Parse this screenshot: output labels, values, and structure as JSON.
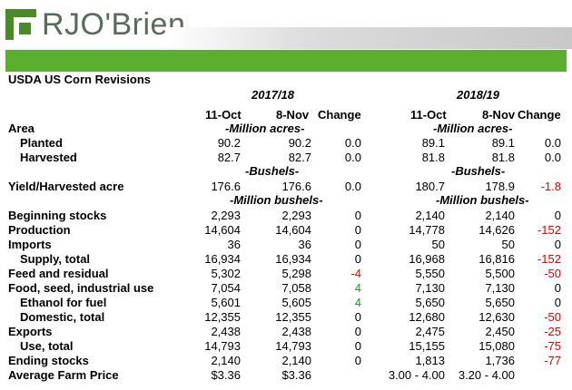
{
  "brand": {
    "name": "RJO'Brien",
    "color_green": "#5ab02e",
    "color_dark_green": "#4a8a2a"
  },
  "title": "USDA US Corn Revisions",
  "year1": "2017/18",
  "year2": "2018/19",
  "col_dates": {
    "a": "11-Oct",
    "b": "8-Nov",
    "change": "Change"
  },
  "units": {
    "acres": "-Million acres-",
    "bushels": "-Bushels-",
    "million_bushels": "-Million bushels-"
  },
  "rows": [
    {
      "label": "Area",
      "bold": true
    },
    {
      "label": "Planted",
      "indent": true,
      "v": [
        "90.2",
        "90.2",
        "0.0",
        "89.1",
        "89.1",
        "0.0"
      ]
    },
    {
      "label": "Harvested",
      "indent": true,
      "v": [
        "82.7",
        "82.7",
        "0.0",
        "81.8",
        "81.8",
        "0.0"
      ]
    },
    {
      "label": "Yield/Harvested acre",
      "v": [
        "176.6",
        "176.6",
        "0.0",
        "180.7",
        "178.9",
        "-1.8"
      ]
    },
    {
      "label": "Beginning stocks",
      "v": [
        "2,293",
        "2,293",
        "0",
        "2,140",
        "2,140",
        "0"
      ]
    },
    {
      "label": "Production",
      "v": [
        "14,604",
        "14,604",
        "0",
        "14,778",
        "14,626",
        "-152"
      ]
    },
    {
      "label": "Imports",
      "v": [
        "36",
        "36",
        "0",
        "50",
        "50",
        "0"
      ]
    },
    {
      "label": "Supply, total",
      "indent": true,
      "v": [
        "16,934",
        "16,934",
        "0",
        "16,968",
        "16,816",
        "-152"
      ]
    },
    {
      "label": "Feed and residual",
      "v": [
        "5,302",
        "5,298",
        "-4",
        "5,550",
        "5,500",
        "-50"
      ]
    },
    {
      "label": "Food, seed, industrial use",
      "v": [
        "7,054",
        "7,058",
        "4",
        "7,130",
        "7,130",
        "0"
      ]
    },
    {
      "label": "Ethanol for fuel",
      "indent": true,
      "v": [
        "5,601",
        "5,605",
        "4",
        "5,650",
        "5,650",
        "0"
      ]
    },
    {
      "label": "Domestic, total",
      "indent": true,
      "v": [
        "12,355",
        "12,355",
        "0",
        "12,680",
        "12,630",
        "-50"
      ]
    },
    {
      "label": "Exports",
      "v": [
        "2,438",
        "2,438",
        "0",
        "2,475",
        "2,450",
        "-25"
      ]
    },
    {
      "label": "Use, total",
      "indent": true,
      "v": [
        "14,793",
        "14,793",
        "0",
        "15,155",
        "15,080",
        "-75"
      ]
    },
    {
      "label": "Ending stocks",
      "v": [
        "2,140",
        "2,140",
        "0",
        "1,813",
        "1,736",
        "-77"
      ]
    },
    {
      "label": "Average Farm Price",
      "v": [
        "$3.36",
        "$3.36",
        "",
        "3.00 - 4.00",
        "3.20 - 4.00",
        ""
      ]
    }
  ],
  "colors": {
    "negative": "#e00000",
    "positive": "#1a9a1a"
  }
}
